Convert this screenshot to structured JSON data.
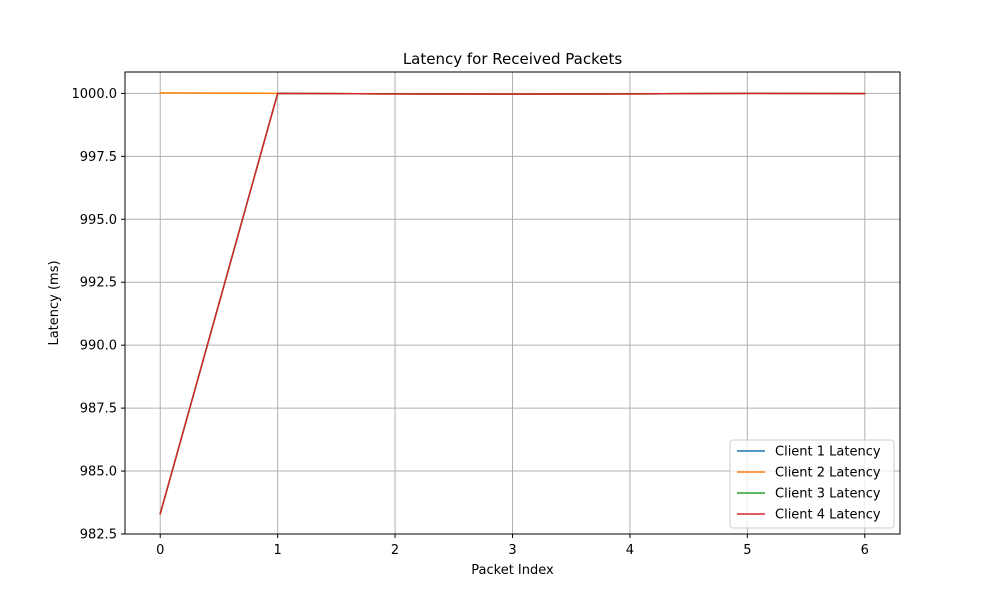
{
  "chart_data": {
    "type": "line",
    "title": "Latency for Received Packets",
    "xlabel": "Packet Index",
    "ylabel": "Latency (ms)",
    "x": [
      0,
      1,
      2,
      3,
      4,
      5,
      6
    ],
    "xlim": [
      -0.3,
      6.3
    ],
    "ylim": [
      982.5,
      1000.85
    ],
    "xticks": [
      0,
      1,
      2,
      3,
      4,
      5,
      6
    ],
    "xtick_labels": [
      "0",
      "1",
      "2",
      "3",
      "4",
      "5",
      "6"
    ],
    "yticks": [
      982.5,
      985.0,
      987.5,
      990.0,
      992.5,
      995.0,
      997.5,
      1000.0
    ],
    "ytick_labels": [
      "982.5",
      "985.0",
      "987.5",
      "990.0",
      "992.5",
      "995.0",
      "997.5",
      "1000.0"
    ],
    "grid": true,
    "legend_position": "lower-right",
    "series": [
      {
        "name": "Client 1 Latency",
        "color": "#1f77b4",
        "values": [
          983.3,
          1000.0,
          999.98,
          999.97,
          999.98,
          1000.0,
          999.99
        ]
      },
      {
        "name": "Client 2 Latency",
        "color": "#ff7f0e",
        "values": [
          1000.02,
          1000.0,
          999.98,
          999.97,
          999.98,
          1000.0,
          999.99
        ]
      },
      {
        "name": "Client 3 Latency",
        "color": "#2ca02c",
        "values": [
          983.3,
          1000.0,
          999.98,
          999.97,
          999.98,
          1000.0,
          999.99
        ]
      },
      {
        "name": "Client 4 Latency",
        "color": "#d62728",
        "values": [
          983.3,
          1000.0,
          999.98,
          999.97,
          999.98,
          1000.0,
          999.99
        ]
      }
    ]
  }
}
